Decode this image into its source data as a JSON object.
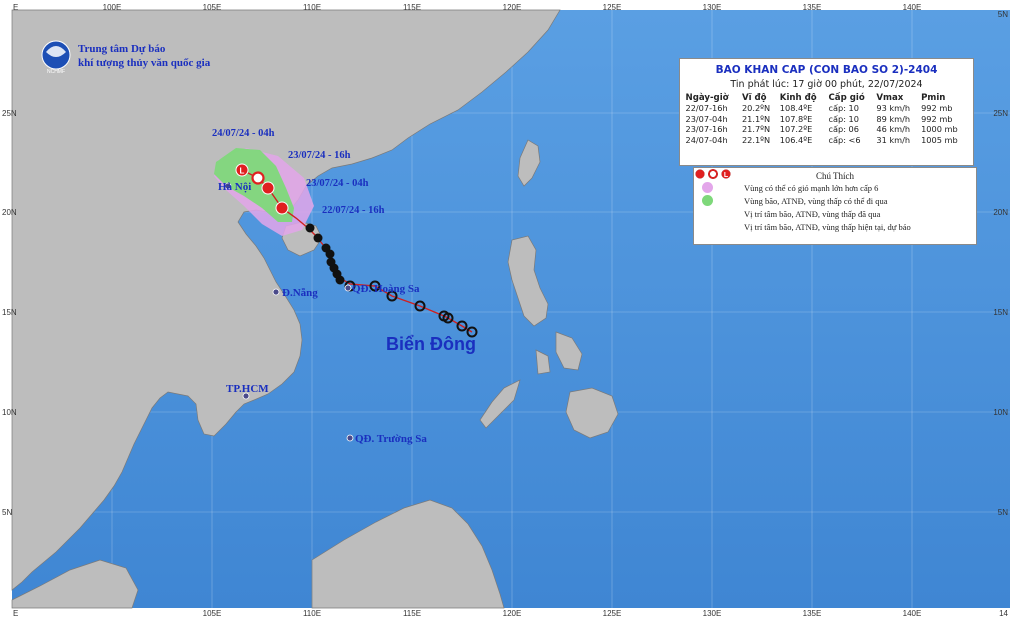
{
  "agency": {
    "line1": "Trung tâm Dự báo",
    "line2": "khí tượng thủy văn quốc gia",
    "logo_text": "NCHMF"
  },
  "ticks": {
    "top_lon": [
      "E",
      "100E",
      "105E",
      "110E",
      "115E",
      "120E",
      "125E",
      "130E",
      "135E",
      "140E",
      "5N"
    ],
    "bottom_lon": [
      "E",
      "105E",
      "110E",
      "115E",
      "120E",
      "125E",
      "130E",
      "135E",
      "140E",
      "14"
    ],
    "left_lat": [
      "25N",
      "20N",
      "15N",
      "10N",
      "5N"
    ],
    "right_lat": [
      "25N",
      "20N",
      "15N",
      "10N",
      "5N"
    ]
  },
  "places": {
    "hanoi": "Hà Nội",
    "danang": "Đ.Nẵng",
    "hoangsa": "QĐ. Hoàng Sa",
    "tphcm": "TP.HCM",
    "truongsa": "QĐ. Trường Sa",
    "sea": "Biển Đông"
  },
  "track_labels": [
    "24/07/24 - 04h",
    "23/07/24 - 16h",
    "23/07/24 - 04h",
    "22/07/24 - 16h"
  ],
  "bulletin": {
    "title": "BAO KHAN CAP (CON BAO SO 2)-2404",
    "issued": "Tin phát lúc: 17 giờ 00 phút, 22/07/2024",
    "headers": [
      "Ngày-giờ",
      "Vĩ độ",
      "Kinh độ",
      "Cấp gió",
      "Vmax",
      "Pmin"
    ],
    "rows": [
      [
        "22/07-16h",
        "20.2ºN",
        "108.4ºE",
        "cấp: 10",
        "93 km/h",
        "992 mb"
      ],
      [
        "23/07-04h",
        "21.1ºN",
        "107.8ºE",
        "cấp: 10",
        "89 km/h",
        "992 mb"
      ],
      [
        "23/07-16h",
        "21.7ºN",
        "107.2ºE",
        "cấp: 06",
        "46 km/h",
        "1000 mb"
      ],
      [
        "24/07-04h",
        "22.1ºN",
        "106.4ºE",
        "cấp: <6",
        "31 km/h",
        "1005 mb"
      ]
    ]
  },
  "legend": {
    "title": "Chú Thích",
    "items": [
      "Vùng có thể có gió mạnh lớn hơn cấp 6",
      "Vùng bão, ATNĐ, vùng thấp có thể đi qua",
      "Vị trí tâm bão, ATNĐ, vùng thấp đã qua",
      "Vị trí tâm bão, ATNĐ, vùng thấp hiện tại, dự báo"
    ],
    "colors": {
      "strong_wind_zone": "#e3a6ea",
      "track_zone": "#7ed87a",
      "past_symbol": "#111111",
      "forecast_symbol": "#e02020"
    }
  },
  "colors": {
    "sea": "#4e95dd",
    "land": "#bdbdbd",
    "label_blue": "#1a2fbf"
  }
}
